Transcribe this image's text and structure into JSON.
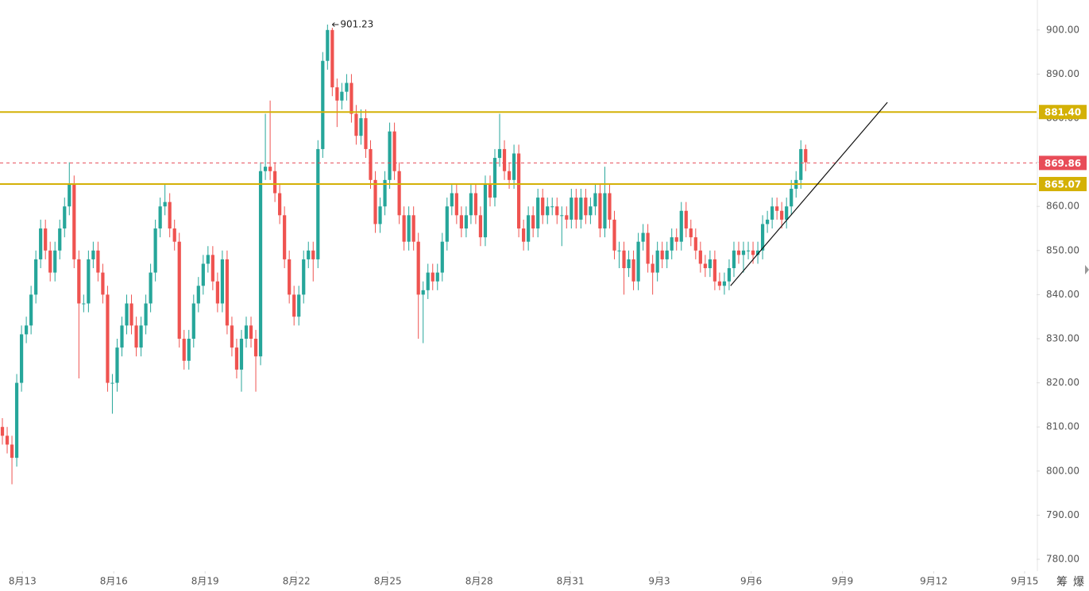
{
  "chart_data": {
    "type": "candlestick",
    "up_color": "#26a69a",
    "down_color": "#ef5350",
    "open": [
      810,
      808,
      806,
      803,
      820,
      831,
      833,
      840,
      848,
      855,
      850,
      845,
      850,
      855,
      860,
      865,
      848,
      838,
      838,
      848,
      850,
      845,
      840,
      820,
      820,
      828,
      833,
      838,
      833,
      828,
      833,
      838,
      845,
      855,
      860,
      861,
      855,
      852,
      830,
      825,
      830,
      838,
      842,
      847,
      849,
      843,
      838,
      848,
      833,
      828,
      823,
      830,
      833,
      830,
      826,
      868,
      869,
      868,
      863,
      858,
      848,
      840,
      835,
      840,
      848,
      850,
      848,
      873,
      893,
      900,
      887,
      884,
      886,
      888,
      881,
      876,
      880,
      873,
      866,
      856,
      860,
      866,
      877,
      868,
      858,
      852,
      858,
      852,
      840,
      841,
      845,
      843,
      845,
      852,
      860,
      863,
      858,
      855,
      858,
      863,
      858,
      853,
      865,
      862,
      871,
      873,
      868,
      866,
      872,
      855,
      852,
      858,
      855,
      862,
      858,
      860,
      860,
      858,
      858,
      857,
      862,
      857,
      862,
      858,
      860,
      863,
      855,
      863,
      857,
      850,
      850,
      846,
      848,
      843,
      852,
      854,
      847,
      845,
      850,
      848,
      850,
      853,
      852,
      859,
      855,
      853,
      850,
      847,
      846,
      848,
      843,
      842,
      843,
      846,
      850,
      849,
      850,
      850,
      849,
      850,
      856,
      857,
      860,
      859,
      857,
      860,
      864,
      866,
      873
    ],
    "high": [
      812,
      810,
      808,
      822,
      833,
      835,
      842,
      850,
      857,
      857,
      852,
      852,
      857,
      862,
      870,
      867,
      850,
      840,
      850,
      852,
      852,
      847,
      842,
      822,
      830,
      835,
      840,
      840,
      835,
      835,
      840,
      847,
      857,
      862,
      865,
      863,
      857,
      854,
      832,
      832,
      840,
      844,
      849,
      851,
      851,
      845,
      850,
      850,
      835,
      830,
      832,
      835,
      835,
      832,
      870,
      881,
      884,
      870,
      865,
      860,
      850,
      842,
      842,
      850,
      852,
      852,
      875,
      895,
      901.23,
      900.5,
      889,
      888,
      890,
      890,
      883,
      882,
      882,
      875,
      868,
      862,
      868,
      879,
      879,
      870,
      860,
      860,
      860,
      854,
      843,
      847,
      847,
      847,
      854,
      862,
      865,
      865,
      860,
      860,
      865,
      865,
      860,
      867,
      867,
      873,
      881,
      875,
      870,
      874,
      874,
      857,
      860,
      860,
      864,
      864,
      862,
      862,
      862,
      860,
      860,
      864,
      864,
      864,
      864,
      862,
      865,
      865,
      869,
      865,
      859,
      852,
      852,
      850,
      850,
      854,
      856,
      856,
      849,
      852,
      852,
      852,
      855,
      855,
      861,
      861,
      857,
      855,
      852,
      849,
      850,
      850,
      845,
      845,
      848,
      852,
      852,
      852,
      852,
      852,
      852,
      858,
      859,
      862,
      862,
      861,
      862,
      866,
      868,
      875,
      874
    ],
    "low": [
      806,
      804,
      797,
      801,
      818,
      829,
      831,
      838,
      846,
      848,
      843,
      843,
      848,
      853,
      858,
      846,
      821,
      836,
      836,
      846,
      843,
      838,
      818,
      813,
      818,
      826,
      831,
      831,
      826,
      826,
      831,
      836,
      843,
      853,
      858,
      853,
      850,
      828,
      823,
      823,
      828,
      836,
      840,
      845,
      841,
      836,
      836,
      831,
      826,
      821,
      818,
      828,
      828,
      818,
      824,
      866,
      866,
      861,
      856,
      846,
      838,
      833,
      833,
      838,
      846,
      843,
      846,
      871,
      891,
      885,
      878,
      882,
      884,
      879,
      874,
      874,
      871,
      864,
      854,
      854,
      858,
      864,
      866,
      856,
      850,
      850,
      850,
      830,
      829,
      839,
      841,
      841,
      843,
      850,
      858,
      856,
      853,
      853,
      856,
      856,
      851,
      851,
      860,
      860,
      869,
      866,
      864,
      864,
      853,
      850,
      850,
      853,
      853,
      856,
      856,
      858,
      856,
      851,
      855,
      855,
      855,
      855,
      856,
      856,
      858,
      853,
      853,
      855,
      848,
      846,
      840,
      844,
      841,
      841,
      850,
      845,
      840,
      843,
      846,
      846,
      848,
      850,
      850,
      853,
      851,
      848,
      845,
      844,
      844,
      841,
      841,
      840,
      841,
      844,
      847,
      845,
      848,
      847,
      847,
      848,
      854,
      855,
      857,
      855,
      855,
      858,
      862,
      864,
      868
    ],
    "close": [
      808,
      806,
      803,
      820,
      831,
      833,
      840,
      848,
      855,
      850,
      845,
      850,
      855,
      860,
      865,
      848,
      838,
      838,
      848,
      850,
      845,
      840,
      820,
      820,
      828,
      833,
      838,
      833,
      828,
      833,
      838,
      845,
      855,
      860,
      861,
      855,
      852,
      830,
      825,
      830,
      838,
      842,
      847,
      849,
      843,
      838,
      848,
      833,
      828,
      823,
      830,
      833,
      830,
      826,
      868,
      869,
      868,
      863,
      858,
      848,
      840,
      835,
      840,
      848,
      850,
      848,
      873,
      893,
      900,
      887,
      884,
      886,
      888,
      881,
      876,
      880,
      873,
      866,
      856,
      860,
      866,
      877,
      868,
      858,
      852,
      858,
      852,
      840,
      841,
      845,
      843,
      845,
      852,
      860,
      863,
      858,
      855,
      858,
      863,
      858,
      853,
      865,
      862,
      871,
      873,
      868,
      866,
      872,
      855,
      852,
      858,
      855,
      862,
      858,
      860,
      860,
      858,
      858,
      857,
      862,
      857,
      862,
      858,
      860,
      863,
      855,
      863,
      857,
      850,
      850,
      846,
      848,
      843,
      852,
      854,
      847,
      845,
      850,
      848,
      850,
      853,
      852,
      859,
      855,
      853,
      850,
      847,
      846,
      848,
      843,
      842,
      843,
      846,
      850,
      849,
      850,
      850,
      849,
      850,
      856,
      857,
      860,
      859,
      857,
      860,
      864,
      866,
      873,
      870
    ],
    "xlim": [
      -0.5,
      216.3
    ],
    "xticks": [
      {
        "value": 4.2,
        "label": "8月13"
      },
      {
        "value": 23.3,
        "label": "8月16"
      },
      {
        "value": 42.4,
        "label": "8月19"
      },
      {
        "value": 61.5,
        "label": "8月22"
      },
      {
        "value": 80.6,
        "label": "8月25"
      },
      {
        "value": 99.7,
        "label": "8月28"
      },
      {
        "value": 118.8,
        "label": "8月31"
      },
      {
        "value": 137.4,
        "label": "9月3"
      },
      {
        "value": 156.6,
        "label": "9月6"
      },
      {
        "value": 175.7,
        "label": "9月9"
      },
      {
        "value": 194.8,
        "label": "9月12"
      },
      {
        "value": 213.8,
        "label": "9月15"
      }
    ],
    "ylim": [
      777.3,
      906.8
    ],
    "yticks": [
      {
        "value": 780,
        "label": "780.00"
      },
      {
        "value": 790,
        "label": "790.00"
      },
      {
        "value": 800,
        "label": "800.00"
      },
      {
        "value": 810,
        "label": "810.00"
      },
      {
        "value": 820,
        "label": "820.00"
      },
      {
        "value": 830,
        "label": "830.00"
      },
      {
        "value": 840,
        "label": "840.00"
      },
      {
        "value": 850,
        "label": "850.00"
      },
      {
        "value": 860,
        "label": "860.00"
      },
      {
        "value": 870,
        "label": "870.00"
      },
      {
        "value": 880,
        "label": "880.00"
      },
      {
        "value": 890,
        "label": "890.00"
      },
      {
        "value": 900,
        "label": "900.00"
      }
    ],
    "price_lines": [
      {
        "value": 881.4,
        "label": "881.40",
        "color": "#d4b106",
        "style": "solid"
      },
      {
        "value": 869.86,
        "label": "869.86",
        "color": "#e84c58",
        "style": "dashed"
      },
      {
        "value": 865.07,
        "label": "865.07",
        "color": "#d4b106",
        "style": "solid"
      }
    ],
    "trendline": {
      "x": [
        152.3,
        185.1
      ],
      "y": [
        842,
        883.6
      ],
      "color": "#111111"
    },
    "max_label_index": 68
  },
  "toolbar": [
    "筹",
    "爆"
  ]
}
